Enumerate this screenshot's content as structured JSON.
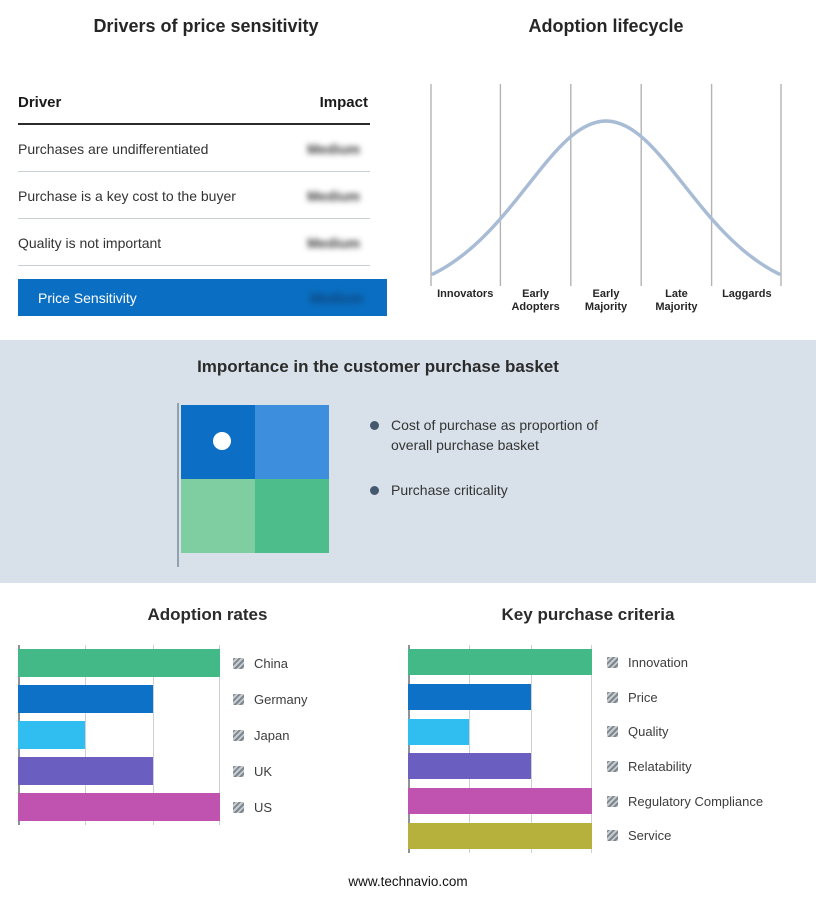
{
  "footer": "www.technavio.com",
  "drivers_table": {
    "title": "Drivers of price sensitivity",
    "col_driver": "Driver",
    "col_impact": "Impact",
    "rows": [
      {
        "driver": "Purchases are undifferentiated",
        "impact": "Medium"
      },
      {
        "driver": "Purchase is a key cost to the buyer",
        "impact": "Medium"
      },
      {
        "driver": "Quality is not important",
        "impact": "Medium"
      }
    ],
    "highlight_row": {
      "driver": "Price Sensitivity",
      "impact": "Medium"
    },
    "highlight_color": "#0a6fc2"
  },
  "basket": {
    "title": "Importance in the customer purchase basket",
    "bullets": [
      "Cost of purchase as proportion of overall purchase basket",
      "Purchase criticality"
    ],
    "quad_colors": {
      "tl": "#0c6ec4",
      "tr": "#3e8ede",
      "bl": "#7fcea2",
      "br": "#4cbd8b"
    }
  },
  "chart_data": [
    {
      "type": "line",
      "title": "Adoption lifecycle",
      "shape": "bell-curve",
      "categories": [
        "Innovators",
        "Early Adopters",
        "Early Majority",
        "Late Majority",
        "Laggards"
      ],
      "peak_stage": "Early Majority",
      "curve_color": "#a9bcd6",
      "grid": "vertical"
    },
    {
      "type": "bar",
      "orientation": "horizontal",
      "title": "Adoption rates",
      "categories": [
        "China",
        "Germany",
        "Japan",
        "UK",
        "US"
      ],
      "values": [
        3,
        2,
        1,
        2,
        3
      ],
      "xlim": [
        0,
        3
      ],
      "grid": "vertical",
      "legend_position": "right",
      "colors": [
        "#43b987",
        "#0e71c8",
        "#30bdf0",
        "#6a5fc0",
        "#c053b0"
      ]
    },
    {
      "type": "bar",
      "orientation": "horizontal",
      "title": "Key purchase criteria",
      "categories": [
        "Innovation",
        "Price",
        "Quality",
        "Relatability",
        "Regulatory Compliance",
        "Service"
      ],
      "values": [
        3,
        2,
        1,
        2,
        3,
        3
      ],
      "xlim": [
        0,
        3
      ],
      "grid": "vertical",
      "legend_position": "right",
      "colors": [
        "#43b987",
        "#0e71c8",
        "#30bdf0",
        "#6a5fc0",
        "#c053b0",
        "#b6b13d"
      ]
    }
  ]
}
